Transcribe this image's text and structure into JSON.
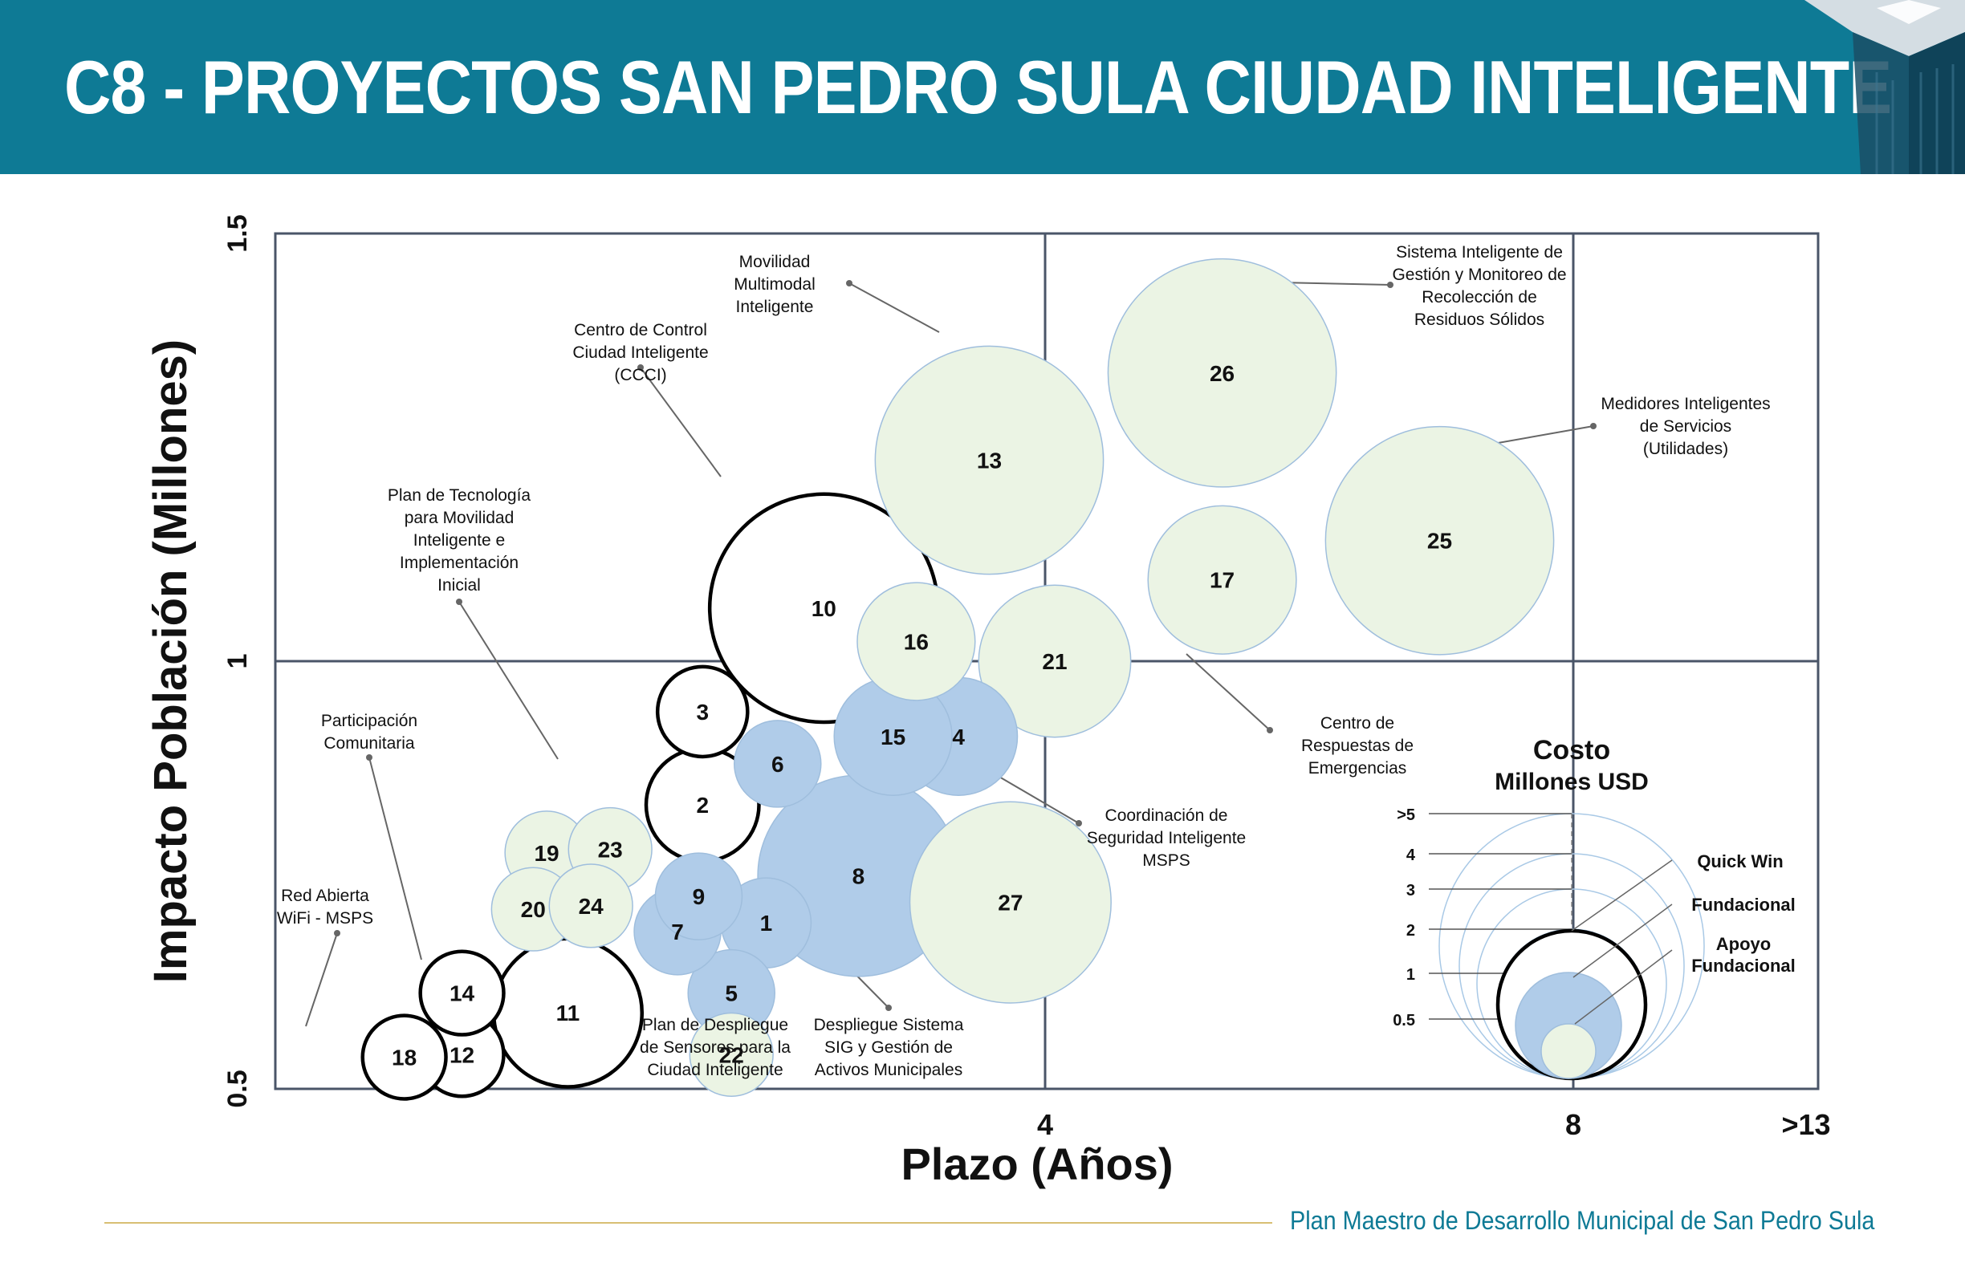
{
  "header": {
    "title": "C8 - PROYECTOS SAN PEDRO SULA CIUDAD INTELIGENTE"
  },
  "footer": {
    "text": "Plan Maestro de Desarrollo Municipal de San Pedro Sula"
  },
  "colors": {
    "header_bg": "#0e7a95",
    "quick_win": "#ffffff",
    "fundacional": "#b0cce9",
    "apoyo_fundacional": "#ebf4e4",
    "grid": "#4a5568",
    "footer_rule": "#d8bf73"
  },
  "chart_data": {
    "type": "bubble",
    "xlabel": "Plazo (Años)",
    "ylabel": "Impacto Población (Millones)",
    "x_ticks": [
      "4",
      "8",
      ">13"
    ],
    "y_ticks": [
      "0.5",
      "1",
      "1.5"
    ],
    "ylim": [
      0.5,
      1.5
    ],
    "categories": [
      {
        "key": "quick_win",
        "name": "Quick Win"
      },
      {
        "key": "fundacional",
        "name": "Fundacional"
      },
      {
        "key": "apoyo_fundacional",
        "name": "Apoyo Fundacional"
      }
    ],
    "legend": {
      "title": "Costo",
      "subtitle": "Millones USD",
      "cost_levels": [
        ">5",
        "4",
        "3",
        "2",
        "1",
        "0.5"
      ],
      "entries": [
        "Quick Win",
        "Fundacional",
        "Apoyo Fundacional"
      ]
    },
    "points": [
      {
        "id": "1",
        "x": 2.55,
        "y": 0.694,
        "cost": 0.7,
        "category": "fundacional"
      },
      {
        "id": "2",
        "x": 2.22,
        "y": 0.832,
        "cost": 1.1,
        "category": "quick_win"
      },
      {
        "id": "3",
        "x": 2.22,
        "y": 0.941,
        "cost": 0.7,
        "category": "quick_win"
      },
      {
        "id": "4",
        "x": 3.55,
        "y": 0.912,
        "cost": 1.2,
        "category": "fundacional"
      },
      {
        "id": "5",
        "x": 2.37,
        "y": 0.612,
        "cost": 0.65,
        "category": "fundacional"
      },
      {
        "id": "6",
        "x": 2.61,
        "y": 0.88,
        "cost": 0.65,
        "category": "fundacional"
      },
      {
        "id": "7",
        "x": 2.09,
        "y": 0.684,
        "cost": 0.65,
        "category": "fundacional"
      },
      {
        "id": "8",
        "x": 3.03,
        "y": 0.749,
        "cost": 3.5,
        "category": "fundacional"
      },
      {
        "id": "9",
        "x": 2.2,
        "y": 0.725,
        "cost": 0.65,
        "category": "fundacional"
      },
      {
        "id": "10",
        "x": 2.85,
        "y": 1.062,
        "cost": 4.5,
        "category": "quick_win"
      },
      {
        "id": "11",
        "x": 1.52,
        "y": 0.589,
        "cost": 1.9,
        "category": "quick_win"
      },
      {
        "id": "12",
        "x": 0.97,
        "y": 0.54,
        "cost": 0.6,
        "category": "quick_win"
      },
      {
        "id": "13",
        "x": 3.71,
        "y": 1.235,
        "cost": 4.5,
        "category": "apoyo_fundacional"
      },
      {
        "id": "14",
        "x": 0.97,
        "y": 0.612,
        "cost": 0.6,
        "category": "quick_win"
      },
      {
        "id": "15",
        "x": 3.21,
        "y": 0.912,
        "cost": 1.2,
        "category": "fundacional"
      },
      {
        "id": "16",
        "x": 3.33,
        "y": 1.023,
        "cost": 1.2,
        "category": "apoyo_fundacional"
      },
      {
        "id": "17",
        "x": 4.92,
        "y": 1.095,
        "cost": 1.9,
        "category": "apoyo_fundacional"
      },
      {
        "id": "18",
        "x": 0.67,
        "y": 0.537,
        "cost": 0.6,
        "category": "quick_win"
      },
      {
        "id": "19",
        "x": 1.41,
        "y": 0.776,
        "cost": 0.6,
        "category": "apoyo_fundacional"
      },
      {
        "id": "20",
        "x": 1.34,
        "y": 0.71,
        "cost": 0.6,
        "category": "apoyo_fundacional"
      },
      {
        "id": "21",
        "x": 4.05,
        "y": 1.0,
        "cost": 2.0,
        "category": "apoyo_fundacional"
      },
      {
        "id": "22",
        "x": 2.37,
        "y": 0.54,
        "cost": 0.6,
        "category": "apoyo_fundacional"
      },
      {
        "id": "23",
        "x": 1.74,
        "y": 0.78,
        "cost": 0.6,
        "category": "apoyo_fundacional"
      },
      {
        "id": "24",
        "x": 1.64,
        "y": 0.714,
        "cost": 0.6,
        "category": "apoyo_fundacional"
      },
      {
        "id": "25",
        "x": 6.05,
        "y": 1.141,
        "cost": 4.5,
        "category": "apoyo_fundacional"
      },
      {
        "id": "26",
        "x": 4.92,
        "y": 1.337,
        "cost": 4.5,
        "category": "apoyo_fundacional"
      },
      {
        "id": "27",
        "x": 3.82,
        "y": 0.718,
        "cost": 3.5,
        "category": "apoyo_fundacional"
      }
    ],
    "annotations": [
      {
        "target": "13",
        "lines": [
          "Movilidad",
          "Multimodal",
          "Inteligente"
        ]
      },
      {
        "target": "10",
        "lines": [
          "Centro de Control",
          "Ciudad Inteligente",
          "(CCCI)"
        ]
      },
      {
        "target": "26",
        "lines": [
          "Sistema Inteligente de",
          "Gestión y Monitoreo de",
          "Recolección de",
          "Residuos Sólidos"
        ]
      },
      {
        "target": "25",
        "lines": [
          "Medidores Inteligentes",
          "de Servicios",
          "(Utilidades)"
        ]
      },
      {
        "target": "2",
        "lines": [
          "Plan de Tecnología",
          "para Movilidad",
          "Inteligente e",
          "Implementación",
          "Inicial"
        ]
      },
      {
        "target": "11",
        "lines": [
          "Participación",
          "Comunitaria"
        ]
      },
      {
        "target": "18",
        "lines": [
          "Red Abierta",
          "WiFi  - MSPS"
        ]
      },
      {
        "target": "17",
        "lines": [
          "Centro de",
          "Respuestas de",
          "Emergencias"
        ]
      },
      {
        "target": "4",
        "lines": [
          "Coordinación de",
          "Seguridad Inteligente",
          "MSPS"
        ]
      },
      {
        "target": "5",
        "lines": [
          "Plan de Despliegue",
          "de Sensores para la",
          "Ciudad Inteligente"
        ]
      },
      {
        "target": "8",
        "lines": [
          "Despliegue Sistema",
          "SIG y Gestión de",
          "Activos Municipales"
        ]
      }
    ]
  }
}
